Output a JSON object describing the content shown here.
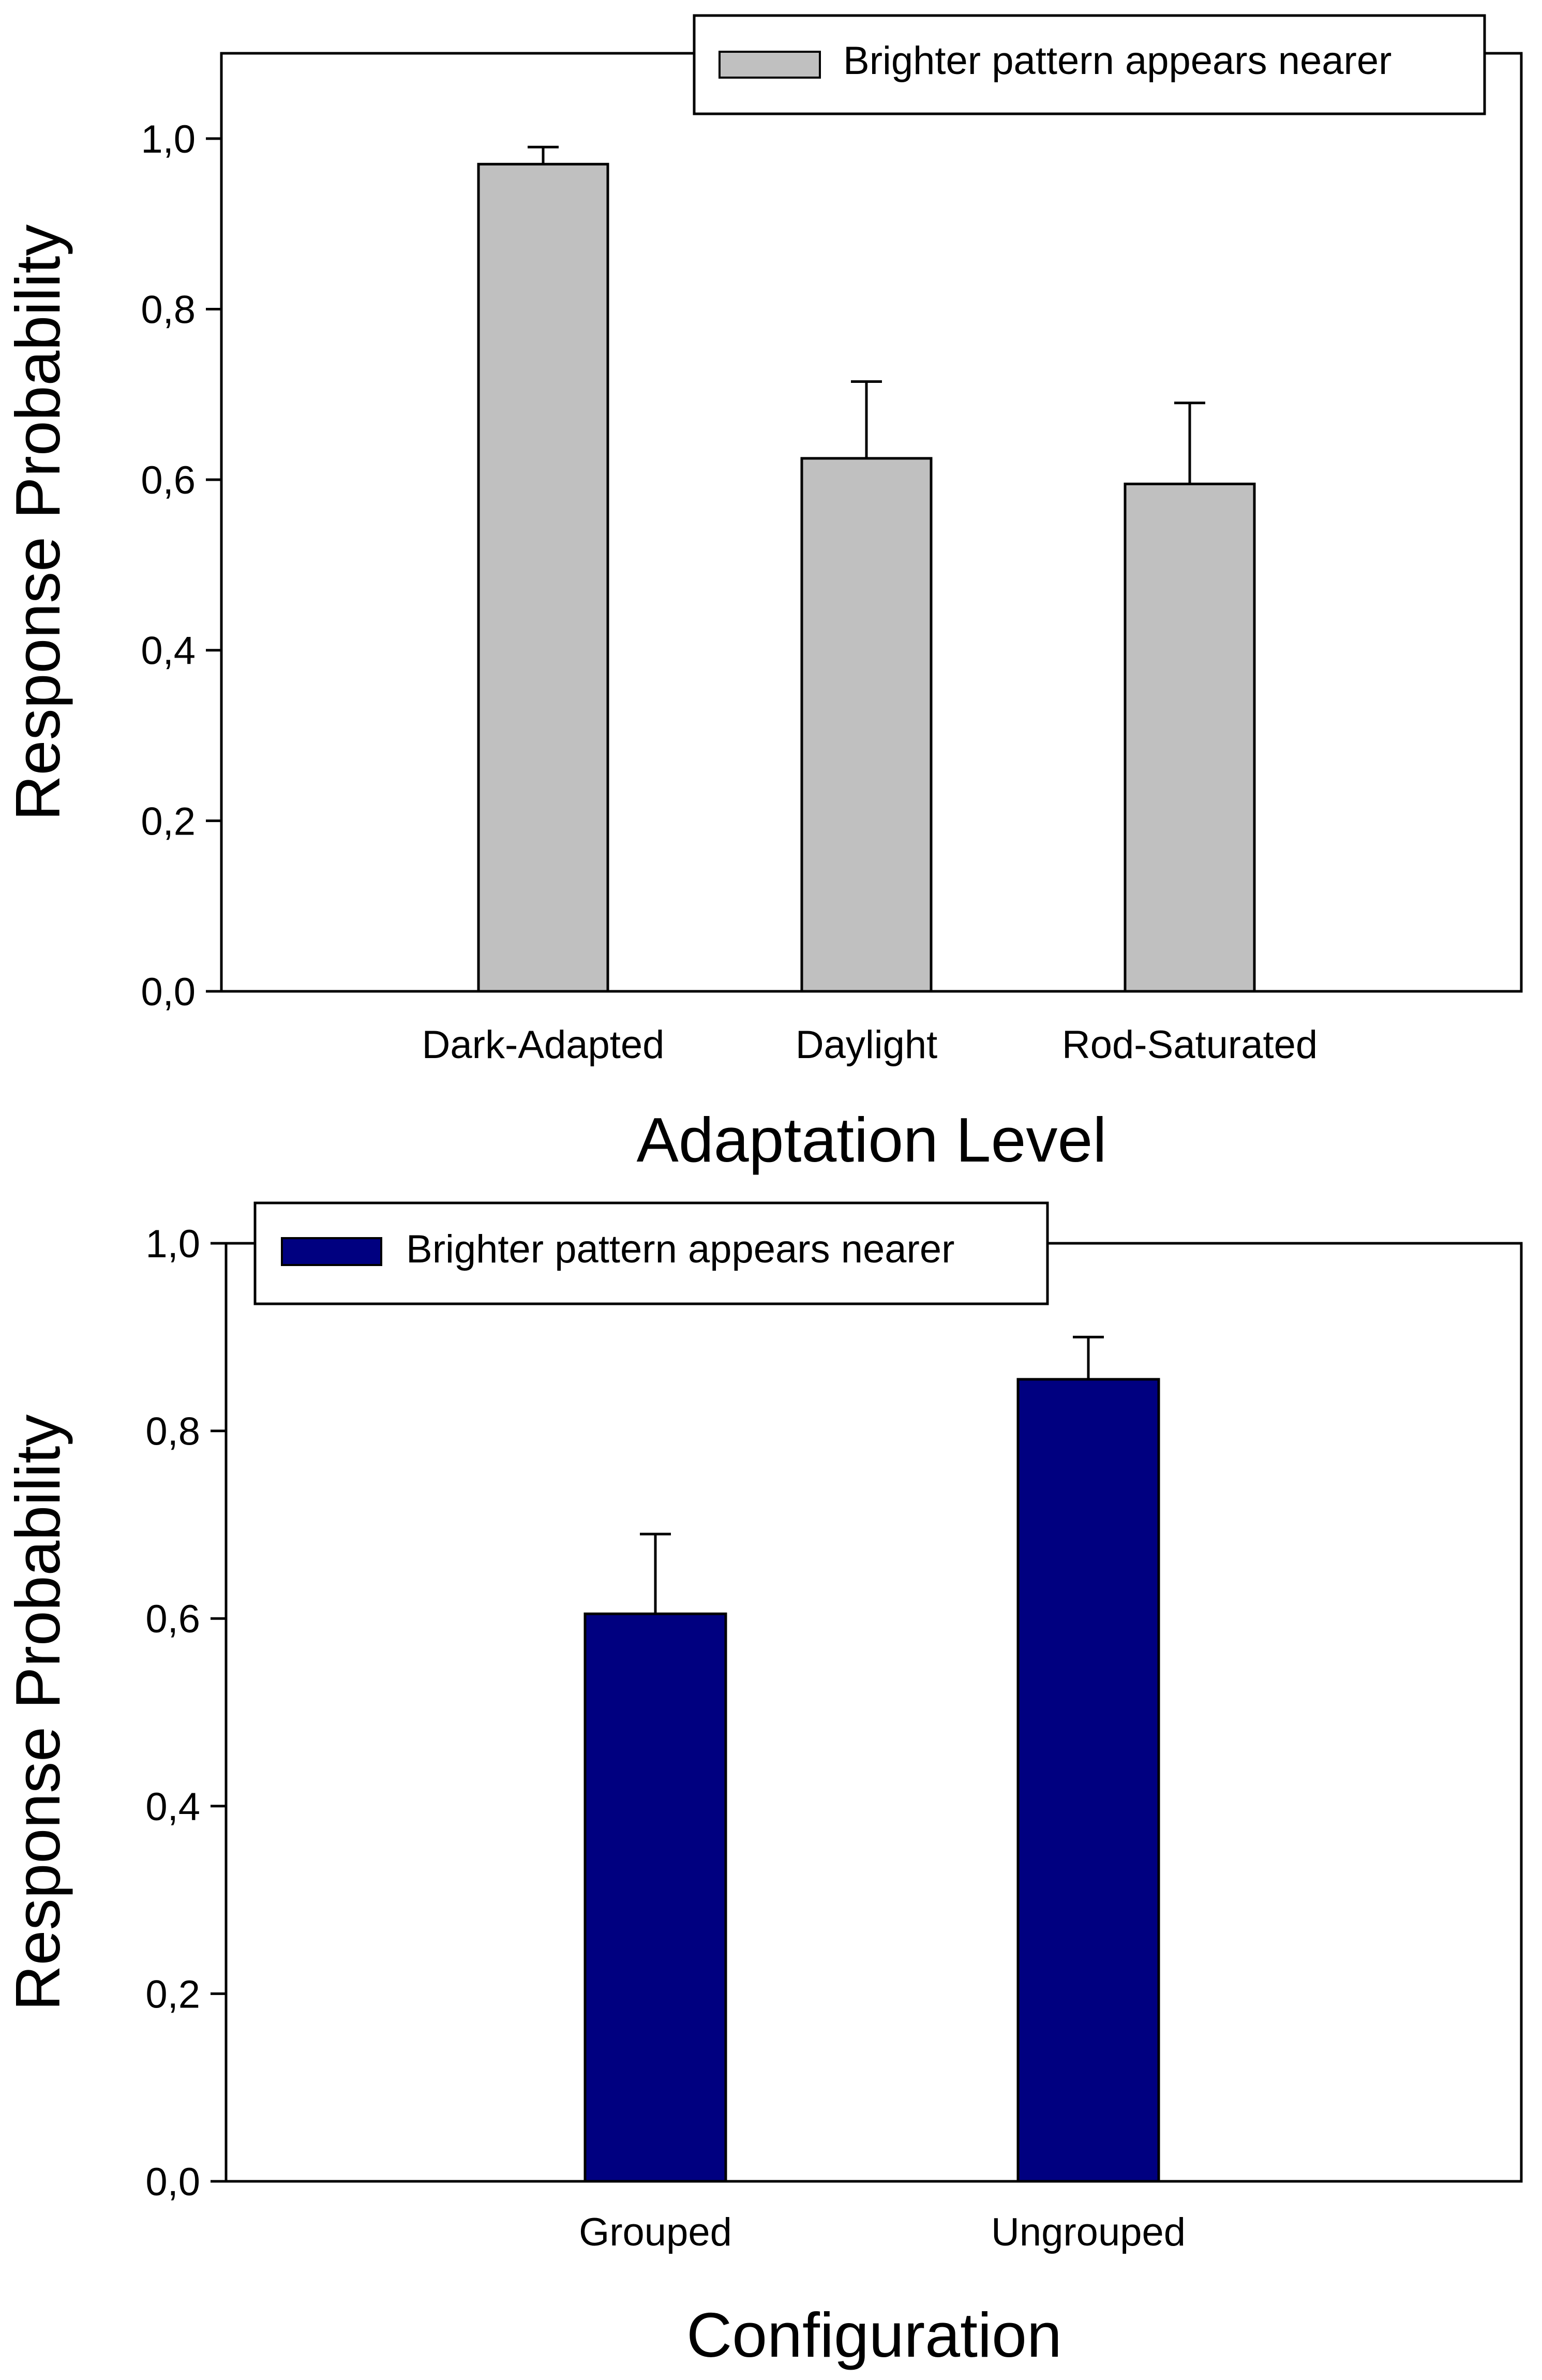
{
  "chart_data": [
    {
      "type": "bar",
      "title": "",
      "xlabel": "Adaptation Level",
      "ylabel": "Response Probability",
      "categories": [
        "Dark-Adapted",
        "Daylight",
        "Rod-Saturated"
      ],
      "series": [
        {
          "name": "Brighter pattern appears nearer",
          "color": "#c0c0c0",
          "values": [
            0.97,
            0.625,
            0.595
          ],
          "error_upper": [
            0.02,
            0.09,
            0.095
          ]
        }
      ],
      "ylim": [
        0,
        1.1
      ],
      "yticks": [
        "0,0",
        "0,2",
        "0,4",
        "0,6",
        "0,8",
        "1,0"
      ],
      "ytick_values": [
        0,
        0.2,
        0.4,
        0.6,
        0.8,
        1.0
      ],
      "grid": false,
      "legend": "top-right"
    },
    {
      "type": "bar",
      "title": "",
      "xlabel": "Configuration",
      "ylabel": "Response Probability",
      "categories": [
        "Grouped",
        "Ungrouped"
      ],
      "series": [
        {
          "name": "Brighter pattern appears nearer",
          "color": "#000080",
          "values": [
            0.605,
            0.855
          ],
          "error_upper": [
            0.085,
            0.045
          ]
        }
      ],
      "ylim": [
        0,
        1.0
      ],
      "yticks": [
        "0,0",
        "0,2",
        "0,4",
        "0,6",
        "0,8",
        "1,0"
      ],
      "ytick_values": [
        0,
        0.2,
        0.4,
        0.6,
        0.8,
        1.0
      ],
      "grid": false,
      "legend": "top-left"
    }
  ]
}
